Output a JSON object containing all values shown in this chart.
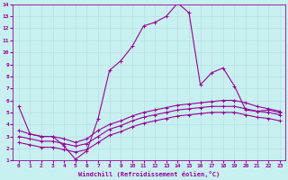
{
  "xlabel": "Windchill (Refroidissement éolien,°C)",
  "bg_color": "#c8f0f0",
  "line_color": "#990099",
  "grid_color": "#b8e0e0",
  "xlim": [
    -0.5,
    23.5
  ],
  "ylim": [
    1,
    14
  ],
  "xticks": [
    0,
    1,
    2,
    3,
    4,
    5,
    6,
    7,
    8,
    9,
    10,
    11,
    12,
    13,
    14,
    15,
    16,
    17,
    18,
    19,
    20,
    21,
    22,
    23
  ],
  "yticks": [
    1,
    2,
    3,
    4,
    5,
    6,
    7,
    8,
    9,
    10,
    11,
    12,
    13,
    14
  ],
  "lines": [
    {
      "x": [
        0,
        1,
        2,
        3,
        4,
        5,
        6,
        7,
        8,
        9,
        10,
        11,
        12,
        13,
        14,
        15,
        16,
        17,
        18,
        19,
        20,
        21,
        22,
        23
      ],
      "y": [
        5.5,
        3.2,
        3.0,
        3.0,
        2.2,
        1.1,
        1.8,
        4.5,
        8.5,
        9.3,
        10.5,
        12.2,
        12.5,
        13.0,
        14.1,
        13.3,
        7.3,
        8.3,
        8.7,
        7.2,
        5.2,
        5.1,
        5.2,
        5.0
      ]
    },
    {
      "x": [
        0,
        1,
        2,
        3,
        4,
        5,
        6,
        7,
        8,
        9,
        10,
        11,
        12,
        13,
        14,
        15,
        16,
        17,
        18,
        19,
        20,
        21,
        22,
        23
      ],
      "y": [
        3.5,
        3.2,
        3.0,
        3.0,
        2.8,
        2.5,
        2.8,
        3.5,
        4.0,
        4.3,
        4.7,
        5.0,
        5.2,
        5.4,
        5.6,
        5.7,
        5.8,
        5.9,
        6.0,
        6.0,
        5.8,
        5.5,
        5.3,
        5.1
      ]
    },
    {
      "x": [
        0,
        1,
        2,
        3,
        4,
        5,
        6,
        7,
        8,
        9,
        10,
        11,
        12,
        13,
        14,
        15,
        16,
        17,
        18,
        19,
        20,
        21,
        22,
        23
      ],
      "y": [
        3.0,
        2.8,
        2.6,
        2.6,
        2.4,
        2.2,
        2.4,
        3.0,
        3.6,
        3.9,
        4.3,
        4.6,
        4.8,
        5.0,
        5.2,
        5.3,
        5.4,
        5.5,
        5.5,
        5.5,
        5.3,
        5.1,
        5.0,
        4.8
      ]
    },
    {
      "x": [
        0,
        1,
        2,
        3,
        4,
        5,
        6,
        7,
        8,
        9,
        10,
        11,
        12,
        13,
        14,
        15,
        16,
        17,
        18,
        19,
        20,
        21,
        22,
        23
      ],
      "y": [
        2.5,
        2.3,
        2.1,
        2.1,
        1.9,
        1.7,
        1.9,
        2.5,
        3.1,
        3.4,
        3.8,
        4.1,
        4.3,
        4.5,
        4.7,
        4.8,
        4.9,
        5.0,
        5.0,
        5.0,
        4.8,
        4.6,
        4.5,
        4.3
      ]
    }
  ]
}
